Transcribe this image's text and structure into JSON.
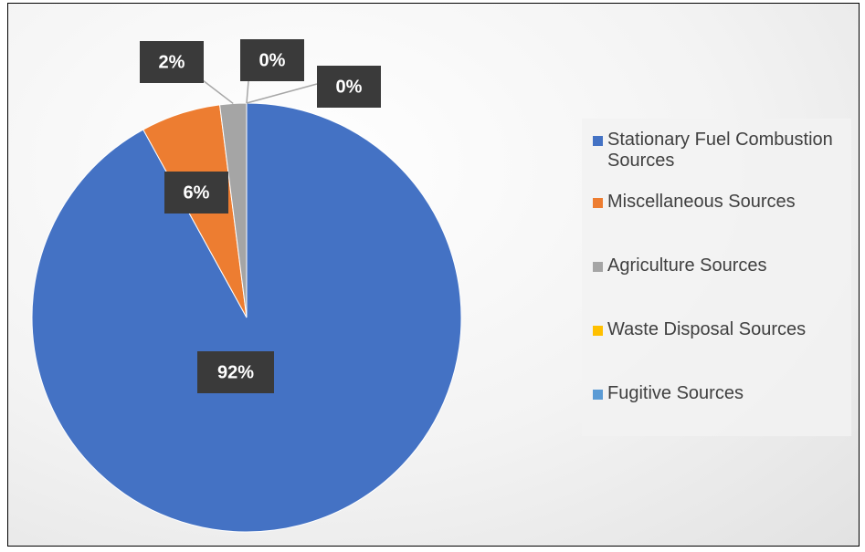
{
  "chart_data": {
    "type": "pie",
    "categories": [
      "Stationary Fuel Combustion Sources",
      "Miscellaneous Sources",
      "Agriculture Sources",
      "Waste Disposal Sources",
      "Fugitive Sources"
    ],
    "values": [
      92,
      6,
      2,
      0,
      0
    ],
    "value_labels": [
      "92%",
      "6%",
      "2%",
      "0%",
      "0%"
    ],
    "colors": [
      "#4472c4",
      "#ed7d31",
      "#a5a5a5",
      "#ffc000",
      "#5b9bd5"
    ],
    "legend": "right"
  }
}
